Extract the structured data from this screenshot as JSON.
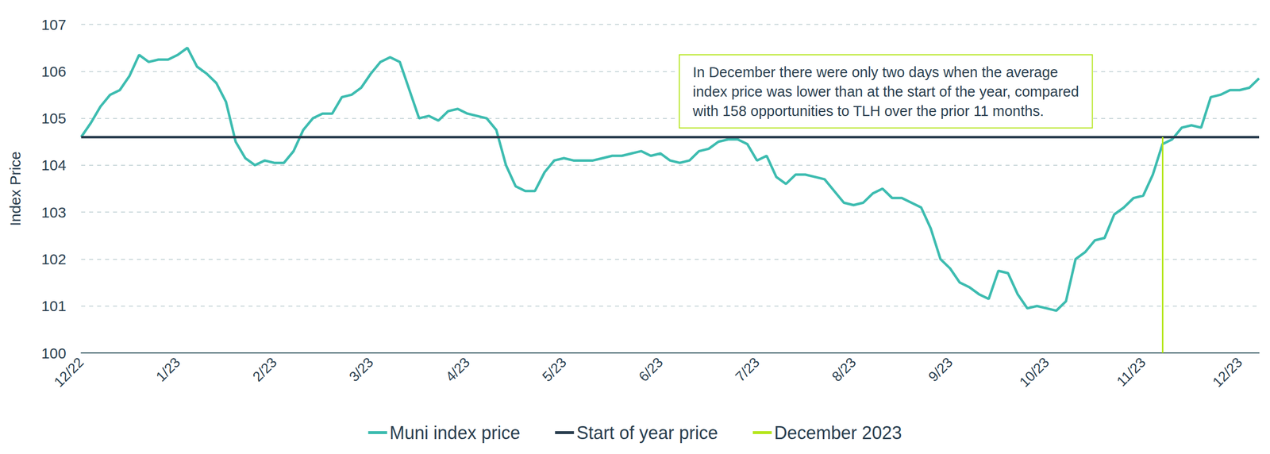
{
  "chart_data": {
    "type": "line",
    "y_label": "Index Price",
    "categories": [
      "12/22",
      null,
      null,
      null,
      null,
      null,
      null,
      null,
      null,
      null,
      "1/23",
      null,
      null,
      null,
      null,
      null,
      null,
      null,
      null,
      null,
      "2/23",
      null,
      null,
      null,
      null,
      null,
      null,
      null,
      null,
      null,
      "3/23",
      null,
      null,
      null,
      null,
      null,
      null,
      null,
      null,
      null,
      "4/23",
      null,
      null,
      null,
      null,
      null,
      null,
      null,
      null,
      null,
      "5/23",
      null,
      null,
      null,
      null,
      null,
      null,
      null,
      null,
      null,
      "6/23",
      null,
      null,
      null,
      null,
      null,
      null,
      null,
      null,
      null,
      "7/23",
      null,
      null,
      null,
      null,
      null,
      null,
      null,
      null,
      null,
      "8/23",
      null,
      null,
      null,
      null,
      null,
      null,
      null,
      null,
      null,
      "9/23",
      null,
      null,
      null,
      null,
      null,
      null,
      null,
      null,
      null,
      "10/23",
      null,
      null,
      null,
      null,
      null,
      null,
      null,
      null,
      null,
      "11/23",
      null,
      null,
      null,
      null,
      null,
      null,
      null,
      null,
      null,
      "12/23",
      null,
      null
    ],
    "series": [
      {
        "name": "Muni index price",
        "color": "#3dbcb0",
        "type": "line",
        "values": [
          104.6,
          104.9,
          105.25,
          105.5,
          105.6,
          105.9,
          106.35,
          106.2,
          106.25,
          106.25,
          106.35,
          106.5,
          106.1,
          105.95,
          105.75,
          105.35,
          104.5,
          104.15,
          104.0,
          104.1,
          104.05,
          104.05,
          104.3,
          104.75,
          105.0,
          105.1,
          105.1,
          105.45,
          105.5,
          105.65,
          105.95,
          106.2,
          106.3,
          106.2,
          105.6,
          105.0,
          105.05,
          104.95,
          105.15,
          105.2,
          105.1,
          105.05,
          105.0,
          104.75,
          104.0,
          103.55,
          103.45,
          103.45,
          103.85,
          104.1,
          104.15,
          104.1,
          104.1,
          104.1,
          104.15,
          104.2,
          104.2,
          104.25,
          104.3,
          104.2,
          104.25,
          104.1,
          104.05,
          104.1,
          104.3,
          104.35,
          104.5,
          104.55,
          104.55,
          104.45,
          104.1,
          104.2,
          103.75,
          103.6,
          103.8,
          103.8,
          103.75,
          103.7,
          103.45,
          103.2,
          103.15,
          103.2,
          103.4,
          103.5,
          103.3,
          103.3,
          103.2,
          103.1,
          102.65,
          102.0,
          101.8,
          101.5,
          101.4,
          101.25,
          101.15,
          101.75,
          101.7,
          101.25,
          100.95,
          101.0,
          100.95,
          100.9,
          101.1,
          102.0,
          102.15,
          102.4,
          102.45,
          102.95,
          103.1,
          103.3,
          103.35,
          103.8,
          104.45,
          104.55,
          104.8,
          104.85,
          104.8,
          105.45,
          105.5,
          105.6,
          105.6,
          105.65,
          105.85
        ]
      },
      {
        "name": "Start of year price",
        "color": "#2b3f50",
        "type": "hline",
        "value": 104.6
      },
      {
        "name": "December 2023",
        "color": "#b5e61d",
        "type": "vline",
        "values": [
          null,
          null,
          null,
          null,
          null,
          null,
          null,
          null,
          null,
          null,
          null,
          null,
          null,
          null,
          null,
          null,
          null,
          null,
          null,
          null,
          null,
          null,
          null,
          null,
          null,
          null,
          null,
          null,
          null,
          null,
          null,
          null,
          null,
          null,
          null,
          null,
          null,
          null,
          null,
          null,
          null,
          null,
          null,
          null,
          null,
          null,
          null,
          null,
          null,
          null,
          null,
          null,
          null,
          null,
          null,
          null,
          null,
          null,
          null,
          null,
          null,
          null,
          null,
          null,
          null,
          null,
          null,
          null,
          null,
          null,
          null,
          null,
          null,
          null,
          null,
          null,
          null,
          null,
          null,
          null,
          null,
          null,
          null,
          null,
          null,
          null,
          null,
          null,
          null,
          null,
          null,
          null,
          null,
          null,
          null,
          null,
          null,
          null,
          null,
          null,
          null,
          null,
          null,
          null,
          null,
          null,
          null,
          null,
          null,
          null,
          null,
          null,
          104.6,
          null,
          null,
          null,
          null,
          null,
          null,
          null,
          null,
          null,
          null
        ]
      }
    ],
    "ylim": [
      100,
      107
    ],
    "yticks": [
      100,
      101,
      102,
      103,
      104,
      105,
      106,
      107
    ],
    "grid": true,
    "legend": "bottom",
    "annotation": "In December there were only two days when the average\nindex price was lower than at the start of the year, compared\nwith 158 opportunities to TLH over the prior 11 months."
  }
}
